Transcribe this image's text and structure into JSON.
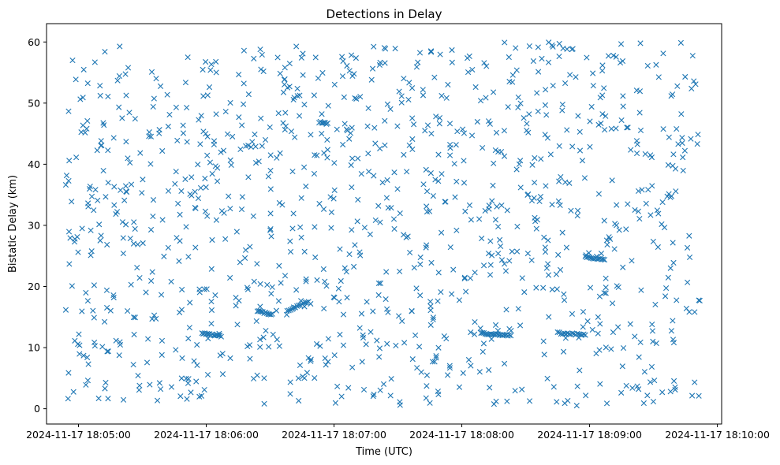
{
  "chart_data": {
    "type": "scatter",
    "title": "Detections in Delay",
    "xlabel": "Time (UTC)",
    "ylabel": "Bistatic Delay (km)",
    "marker": "x",
    "color": "#1f77b4",
    "grid": false,
    "legend": "none",
    "xlim": [
      "2024-11-17 18:04:45",
      "2024-11-17 18:10:02"
    ],
    "ylim": [
      -2.5,
      63
    ],
    "x_ticks": [
      "2024-11-17 18:05:00",
      "2024-11-17 18:06:00",
      "2024-11-17 18:07:00",
      "2024-11-17 18:08:00",
      "2024-11-17 18:09:00",
      "2024-11-17 18:10:00"
    ],
    "y_ticks": [
      0,
      10,
      20,
      30,
      40,
      50,
      60
    ],
    "data_span": [
      "2024-11-17 18:04:54",
      "2024-11-17 18:09:52"
    ],
    "num_noise_detections": 1100,
    "tracks": [
      {
        "start": "2024-11-17 18:05:58",
        "end": "2024-11-17 18:06:07",
        "delay_start": 12.3,
        "delay_end": 11.9,
        "points": 16
      },
      {
        "start": "2024-11-17 18:06:24",
        "end": "2024-11-17 18:06:31",
        "delay_start": 16.0,
        "delay_end": 15.4,
        "points": 12
      },
      {
        "start": "2024-11-17 18:06:38",
        "end": "2024-11-17 18:06:48",
        "delay_start": 16.0,
        "delay_end": 17.6,
        "points": 14
      },
      {
        "start": "2024-11-17 18:06:53",
        "end": "2024-11-17 18:06:57",
        "delay_start": 46.9,
        "delay_end": 46.6,
        "points": 8
      },
      {
        "start": "2024-11-17 18:08:09",
        "end": "2024-11-17 18:08:23",
        "delay_start": 12.3,
        "delay_end": 12.0,
        "points": 22
      },
      {
        "start": "2024-11-17 18:08:45",
        "end": "2024-11-17 18:08:58",
        "delay_start": 12.4,
        "delay_end": 12.1,
        "points": 18
      },
      {
        "start": "2024-11-17 18:08:58",
        "end": "2024-11-17 18:09:07",
        "delay_start": 24.9,
        "delay_end": 24.3,
        "points": 14
      }
    ]
  }
}
